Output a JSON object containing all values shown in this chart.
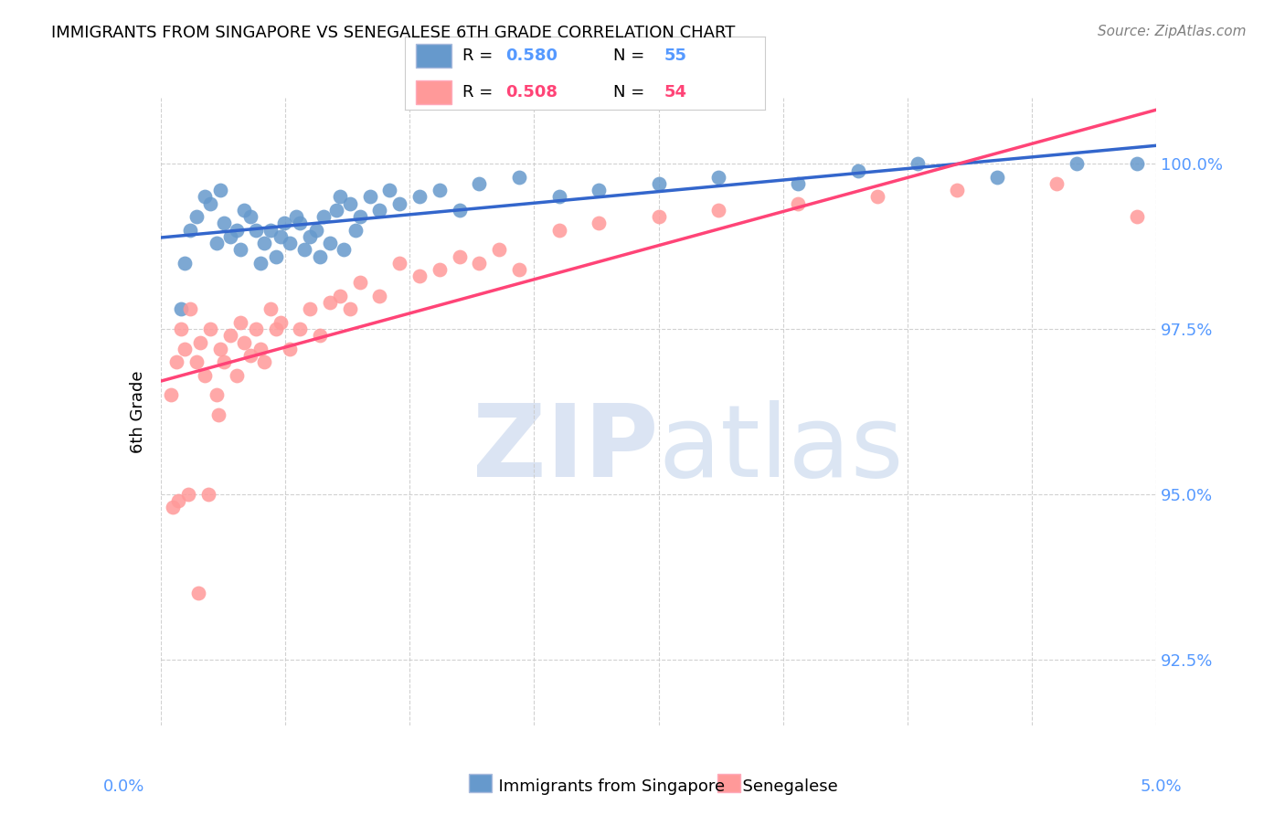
{
  "title": "IMMIGRANTS FROM SINGAPORE VS SENEGALESE 6TH GRADE CORRELATION CHART",
  "source": "Source: ZipAtlas.com",
  "ylabel": "6th Grade",
  "yaxis_labels": [
    "100.0%",
    "97.5%",
    "95.0%",
    "92.5%"
  ],
  "yaxis_values": [
    100.0,
    97.5,
    95.0,
    92.5
  ],
  "xlim": [
    0.0,
    5.0
  ],
  "ylim": [
    91.5,
    101.0
  ],
  "blue_r": "0.580",
  "blue_n": "55",
  "pink_r": "0.508",
  "pink_n": "54",
  "blue_color": "#6699CC",
  "pink_color": "#FF9999",
  "blue_line_color": "#3366CC",
  "pink_line_color": "#FF4477",
  "blue_label_color": "#5599FF",
  "pink_label_color": "#FF4477",
  "axis_label_color": "#5599FF",
  "singapore_x": [
    0.1,
    0.15,
    0.12,
    0.18,
    0.22,
    0.25,
    0.28,
    0.3,
    0.32,
    0.35,
    0.38,
    0.4,
    0.42,
    0.45,
    0.48,
    0.5,
    0.52,
    0.55,
    0.58,
    0.6,
    0.62,
    0.65,
    0.68,
    0.7,
    0.72,
    0.75,
    0.78,
    0.8,
    0.82,
    0.85,
    0.88,
    0.9,
    0.92,
    0.95,
    0.98,
    1.0,
    1.05,
    1.1,
    1.15,
    1.2,
    1.3,
    1.4,
    1.5,
    1.6,
    1.8,
    2.0,
    2.2,
    2.5,
    2.8,
    3.2,
    3.5,
    3.8,
    4.2,
    4.6,
    4.9
  ],
  "singapore_y": [
    97.8,
    99.0,
    98.5,
    99.2,
    99.5,
    99.4,
    98.8,
    99.6,
    99.1,
    98.9,
    99.0,
    98.7,
    99.3,
    99.2,
    99.0,
    98.5,
    98.8,
    99.0,
    98.6,
    98.9,
    99.1,
    98.8,
    99.2,
    99.1,
    98.7,
    98.9,
    99.0,
    98.6,
    99.2,
    98.8,
    99.3,
    99.5,
    98.7,
    99.4,
    99.0,
    99.2,
    99.5,
    99.3,
    99.6,
    99.4,
    99.5,
    99.6,
    99.3,
    99.7,
    99.8,
    99.5,
    99.6,
    99.7,
    99.8,
    99.7,
    99.9,
    100.0,
    99.8,
    100.0,
    100.0
  ],
  "senegalese_x": [
    0.05,
    0.08,
    0.1,
    0.12,
    0.15,
    0.18,
    0.2,
    0.22,
    0.25,
    0.28,
    0.3,
    0.32,
    0.35,
    0.38,
    0.4,
    0.42,
    0.45,
    0.48,
    0.5,
    0.52,
    0.55,
    0.58,
    0.6,
    0.65,
    0.7,
    0.75,
    0.8,
    0.85,
    0.9,
    0.95,
    1.0,
    1.1,
    1.2,
    1.3,
    1.4,
    1.5,
    1.6,
    1.7,
    1.8,
    2.0,
    2.2,
    2.5,
    2.8,
    3.2,
    3.6,
    4.0,
    4.5,
    4.9,
    0.06,
    0.09,
    0.14,
    0.19,
    0.24,
    0.29
  ],
  "senegalese_y": [
    96.5,
    97.0,
    97.5,
    97.2,
    97.8,
    97.0,
    97.3,
    96.8,
    97.5,
    96.5,
    97.2,
    97.0,
    97.4,
    96.8,
    97.6,
    97.3,
    97.1,
    97.5,
    97.2,
    97.0,
    97.8,
    97.5,
    97.6,
    97.2,
    97.5,
    97.8,
    97.4,
    97.9,
    98.0,
    97.8,
    98.2,
    98.0,
    98.5,
    98.3,
    98.4,
    98.6,
    98.5,
    98.7,
    98.4,
    99.0,
    99.1,
    99.2,
    99.3,
    99.4,
    99.5,
    99.6,
    99.7,
    99.2,
    94.8,
    94.9,
    95.0,
    93.5,
    95.0,
    96.2
  ]
}
